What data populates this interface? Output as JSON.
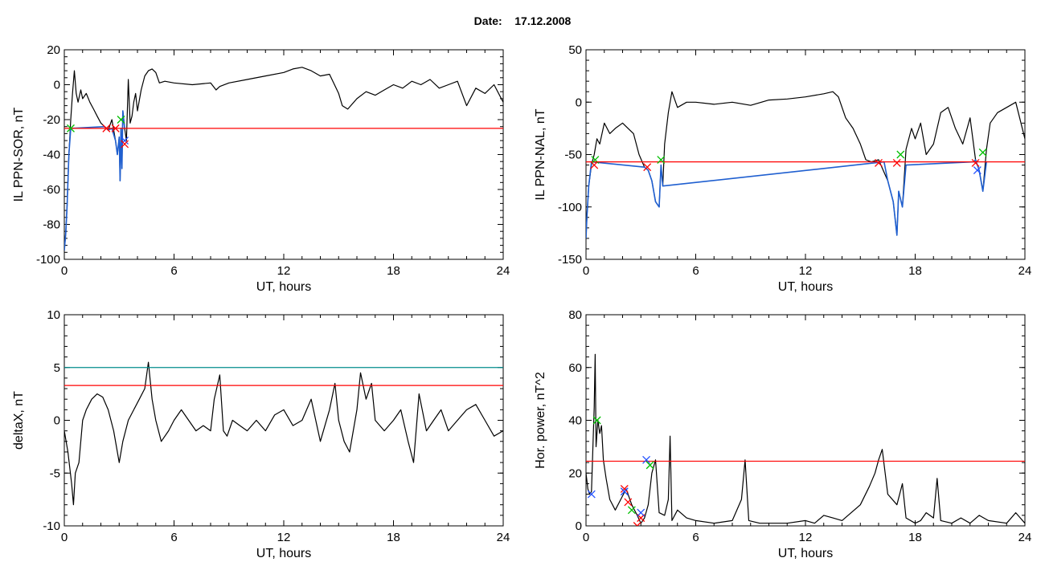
{
  "header": {
    "date_label": "Date:",
    "date_value": "17.12.2008"
  },
  "colors": {
    "signal": "#000000",
    "threshold": "#ff0000",
    "threshold_alt": "#008b8b",
    "event_blue": "#1f5fd0",
    "marker_red": "#ff0000",
    "marker_green": "#00c000",
    "marker_blue": "#2050ff"
  },
  "chart_data": [
    {
      "type": "line",
      "id": "il-ppn-sor",
      "title": "",
      "xlabel": "UT, hours",
      "ylabel": "IL PPN-SOR, nT",
      "xlim": [
        0,
        24
      ],
      "ylim": [
        -100,
        20
      ],
      "xticks": [
        0,
        6,
        12,
        18,
        24
      ],
      "yticks": [
        -100,
        -80,
        -60,
        -40,
        -20,
        0,
        20
      ],
      "grid": false,
      "thresholds": [
        {
          "value": -25,
          "color": "#ff0000"
        }
      ],
      "series": [
        {
          "color": "#000000",
          "x": [
            0,
            0.08,
            0.15,
            0.25,
            0.35,
            0.45,
            0.55,
            0.65,
            0.75,
            0.9,
            1.0,
            1.2,
            1.4,
            1.6,
            1.8,
            2.0,
            2.2,
            2.4,
            2.6,
            2.8,
            2.9,
            3.0,
            3.05,
            3.1,
            3.15,
            3.2,
            3.3,
            3.4,
            3.5,
            3.6,
            3.7,
            3.8,
            3.9,
            4.0,
            4.2,
            4.4,
            4.6,
            4.8,
            5.0,
            5.2,
            5.5,
            6,
            7,
            8,
            8.3,
            8.5,
            9,
            10,
            11,
            12,
            12.5,
            13,
            13.5,
            14,
            14.5,
            15,
            15.2,
            15.5,
            16,
            16.5,
            17,
            17.5,
            18,
            18.5,
            19,
            19.5,
            20,
            20.5,
            21,
            21.5,
            22,
            22.5,
            23,
            23.5,
            24
          ],
          "y": [
            -95,
            -85,
            -70,
            -40,
            -20,
            -5,
            8,
            -5,
            -10,
            -3,
            -8,
            -5,
            -10,
            -14,
            -18,
            -22,
            -24,
            -26,
            -20,
            -32,
            -40,
            -30,
            -55,
            -25,
            -48,
            -15,
            -25,
            -32,
            3,
            -22,
            -18,
            -10,
            -5,
            -15,
            -3,
            5,
            8,
            9,
            7,
            1,
            2,
            1,
            0,
            1,
            -3,
            -1,
            1,
            3,
            5,
            7,
            9,
            10,
            8,
            5,
            6,
            -5,
            -12,
            -14,
            -8,
            -4,
            -6,
            -3,
            0,
            -2,
            2,
            0,
            3,
            -2,
            0,
            2,
            -12,
            -2,
            -5,
            0,
            -10
          ]
        },
        {
          "color": "#1f5fd0",
          "x": [
            0,
            0.08,
            0.15,
            0.25,
            0.35,
            2.2,
            2.4,
            2.6,
            2.8,
            2.9,
            3.0,
            3.05,
            3.1,
            3.15,
            3.2,
            3.3
          ],
          "y": [
            -95,
            -85,
            -70,
            -40,
            -25,
            -24,
            -26,
            -25,
            -32,
            -40,
            -30,
            -55,
            -25,
            -48,
            -15,
            -25
          ]
        }
      ],
      "markers": [
        {
          "x": 0.35,
          "y": -25,
          "color": "#00c000"
        },
        {
          "x": 2.3,
          "y": -25,
          "color": "#ff0000"
        },
        {
          "x": 2.8,
          "y": -25,
          "color": "#ff0000"
        },
        {
          "x": 3.1,
          "y": -20,
          "color": "#00c000"
        },
        {
          "x": 3.3,
          "y": -32,
          "color": "#2050ff"
        },
        {
          "x": 3.3,
          "y": -34,
          "color": "#ff0000"
        }
      ]
    },
    {
      "type": "line",
      "id": "il-ppn-nal",
      "title": "",
      "xlabel": "UT, hours",
      "ylabel": "IL PPN-NAL, nT",
      "xlim": [
        0,
        24
      ],
      "ylim": [
        -150,
        50
      ],
      "xticks": [
        0,
        6,
        12,
        18,
        24
      ],
      "yticks": [
        -150,
        -100,
        -50,
        0,
        50
      ],
      "grid": false,
      "thresholds": [
        {
          "value": -57,
          "color": "#ff0000"
        }
      ],
      "series": [
        {
          "color": "#000000",
          "x": [
            0,
            0.05,
            0.15,
            0.3,
            0.45,
            0.6,
            0.75,
            1.0,
            1.3,
            1.6,
            2.0,
            2.3,
            2.6,
            2.9,
            3.2,
            3.4,
            3.6,
            3.8,
            4.0,
            4.1,
            4.2,
            4.3,
            4.5,
            4.7,
            5.0,
            5.5,
            6,
            7,
            8,
            9,
            10,
            11,
            12,
            13,
            13.5,
            13.8,
            14.2,
            14.6,
            15,
            15.3,
            15.6,
            16,
            16.5,
            16.8,
            17.0,
            17.1,
            17.3,
            17.5,
            17.8,
            18.0,
            18.3,
            18.6,
            19.0,
            19.4,
            19.8,
            20.2,
            20.6,
            21.0,
            21.3,
            21.5,
            21.7,
            21.9,
            22.1,
            22.5,
            23,
            23.5,
            24
          ],
          "y": [
            -130,
            -110,
            -80,
            -60,
            -50,
            -35,
            -40,
            -20,
            -30,
            -25,
            -20,
            -25,
            -30,
            -50,
            -62,
            -65,
            -75,
            -95,
            -100,
            -60,
            -80,
            -40,
            -10,
            10,
            -5,
            0,
            0,
            -2,
            0,
            -3,
            2,
            3,
            5,
            8,
            10,
            5,
            -15,
            -25,
            -40,
            -55,
            -57,
            -55,
            -75,
            -95,
            -127,
            -85,
            -100,
            -45,
            -25,
            -35,
            -20,
            -50,
            -40,
            -10,
            -5,
            -25,
            -40,
            -15,
            -55,
            -65,
            -85,
            -45,
            -20,
            -10,
            -5,
            0,
            -35
          ]
        },
        {
          "color": "#1f5fd0",
          "x": [
            0,
            0.05,
            0.15,
            0.3,
            3.2,
            3.4,
            3.6,
            3.8,
            4.0,
            4.1,
            4.2,
            16.3,
            16.5,
            16.8,
            17.0,
            17.1,
            17.3,
            17.5,
            21.2,
            21.3,
            21.5,
            21.7,
            21.9
          ],
          "y": [
            -130,
            -110,
            -80,
            -57,
            -62,
            -65,
            -75,
            -95,
            -100,
            -60,
            -80,
            -57,
            -75,
            -95,
            -127,
            -85,
            -100,
            -60,
            -57,
            -55,
            -65,
            -85,
            -57
          ]
        }
      ],
      "markers": [
        {
          "x": 0.5,
          "y": -55,
          "color": "#00c000"
        },
        {
          "x": 0.45,
          "y": -60,
          "color": "#ff0000"
        },
        {
          "x": 3.35,
          "y": -62,
          "color": "#ff0000"
        },
        {
          "x": 4.1,
          "y": -55,
          "color": "#00c000"
        },
        {
          "x": 16.0,
          "y": -58,
          "color": "#ff0000"
        },
        {
          "x": 17.0,
          "y": -58,
          "color": "#ff0000"
        },
        {
          "x": 17.2,
          "y": -50,
          "color": "#00c000"
        },
        {
          "x": 21.3,
          "y": -58,
          "color": "#ff0000"
        },
        {
          "x": 21.4,
          "y": -65,
          "color": "#2050ff"
        },
        {
          "x": 21.7,
          "y": -48,
          "color": "#00c000"
        }
      ]
    },
    {
      "type": "line",
      "id": "deltax",
      "title": "",
      "xlabel": "UT, hours",
      "ylabel": "deltaX, nT",
      "xlim": [
        0,
        24
      ],
      "ylim": [
        -10,
        10
      ],
      "xticks": [
        0,
        6,
        12,
        18,
        24
      ],
      "yticks": [
        -10,
        -5,
        0,
        5,
        10
      ],
      "grid": false,
      "thresholds": [
        {
          "value": 5,
          "color": "#008b8b"
        },
        {
          "value": 3.3,
          "color": "#ff0000"
        }
      ],
      "series": [
        {
          "color": "#000000",
          "x": [
            0,
            0.2,
            0.4,
            0.5,
            0.6,
            0.8,
            1.0,
            1.2,
            1.5,
            1.8,
            2.1,
            2.4,
            2.7,
            3.0,
            3.2,
            3.5,
            3.8,
            4.1,
            4.4,
            4.6,
            4.8,
            5.0,
            5.3,
            5.7,
            6.0,
            6.4,
            6.8,
            7.2,
            7.6,
            8.0,
            8.2,
            8.5,
            8.7,
            8.9,
            9.2,
            9.6,
            10,
            10.5,
            11,
            11.5,
            12,
            12.5,
            13,
            13.5,
            14,
            14.5,
            14.8,
            15.0,
            15.3,
            15.6,
            16.0,
            16.2,
            16.5,
            16.8,
            17,
            17.5,
            18,
            18.4,
            18.8,
            19.1,
            19.4,
            19.8,
            20.2,
            20.6,
            21,
            21.5,
            22,
            22.5,
            23,
            23.5,
            24
          ],
          "y": [
            -1,
            -3,
            -6,
            -8,
            -5,
            -4,
            0,
            1,
            2,
            2.5,
            2.2,
            1,
            -1,
            -4,
            -2,
            0,
            1,
            2,
            3,
            5.5,
            2,
            0,
            -2,
            -1,
            0,
            1,
            0,
            -1,
            -0.5,
            -1,
            2,
            4.3,
            -1,
            -1.5,
            0,
            -0.5,
            -1,
            0,
            -1,
            0.5,
            1,
            -0.5,
            0,
            2,
            -2,
            1,
            3.5,
            0,
            -2,
            -3,
            1,
            4.5,
            2,
            3.5,
            0,
            -1,
            0,
            1,
            -2,
            -4,
            2.5,
            -1,
            0,
            1,
            -1,
            0,
            1,
            1.5,
            0,
            -1.5,
            -1
          ]
        }
      ],
      "markers": []
    },
    {
      "type": "line",
      "id": "hor-power",
      "title": "",
      "xlabel": "UT, hours",
      "ylabel": "Hor. power, nT^2",
      "xlim": [
        0,
        24
      ],
      "ylim": [
        0,
        80
      ],
      "xticks": [
        0,
        6,
        12,
        18,
        24
      ],
      "yticks": [
        0,
        20,
        40,
        60,
        80
      ],
      "grid": false,
      "thresholds": [
        {
          "value": 24.5,
          "color": "#ff0000"
        }
      ],
      "series": [
        {
          "color": "#000000",
          "x": [
            0,
            0.1,
            0.2,
            0.3,
            0.45,
            0.5,
            0.55,
            0.65,
            0.75,
            0.85,
            0.95,
            1.1,
            1.3,
            1.6,
            1.9,
            2.2,
            2.5,
            2.8,
            3.0,
            3.2,
            3.4,
            3.6,
            3.8,
            4.0,
            4.3,
            4.5,
            4.6,
            4.7,
            5.0,
            5.5,
            6,
            7,
            8,
            8.5,
            8.7,
            8.9,
            9.5,
            10,
            11,
            12,
            12.5,
            13,
            13.5,
            14,
            14.5,
            15,
            15.5,
            15.8,
            16.0,
            16.2,
            16.5,
            17,
            17.3,
            17.5,
            18,
            18.3,
            18.6,
            19,
            19.2,
            19.4,
            20,
            20.5,
            21,
            21.5,
            22,
            23,
            23.5,
            24
          ],
          "y": [
            20,
            14,
            12,
            13,
            45,
            65,
            30,
            40,
            35,
            38,
            25,
            18,
            10,
            6,
            10,
            14,
            8,
            4,
            1,
            3,
            8,
            20,
            25,
            5,
            4,
            10,
            34,
            2,
            6,
            3,
            2,
            1,
            2,
            10,
            25,
            2,
            1,
            1,
            1,
            2,
            1,
            4,
            3,
            2,
            5,
            8,
            15,
            20,
            25,
            29,
            12,
            8,
            16,
            3,
            1,
            2,
            5,
            3,
            18,
            2,
            1,
            3,
            1,
            4,
            2,
            1,
            5,
            1
          ]
        }
      ],
      "markers": [
        {
          "x": 0.3,
          "y": 12,
          "color": "#2050ff"
        },
        {
          "x": 0.6,
          "y": 40,
          "color": "#00c000"
        },
        {
          "x": 2.1,
          "y": 14,
          "color": "#ff0000"
        },
        {
          "x": 2.1,
          "y": 13,
          "color": "#2050ff"
        },
        {
          "x": 2.3,
          "y": 9,
          "color": "#ff0000"
        },
        {
          "x": 2.5,
          "y": 6,
          "color": "#00c000"
        },
        {
          "x": 2.8,
          "y": 0,
          "color": "#ff0000"
        },
        {
          "x": 3.0,
          "y": 3,
          "color": "#ff0000"
        },
        {
          "x": 3.0,
          "y": 5,
          "color": "#2050ff"
        },
        {
          "x": 3.3,
          "y": 25,
          "color": "#2050ff"
        },
        {
          "x": 3.5,
          "y": 23,
          "color": "#00c000"
        }
      ]
    }
  ]
}
